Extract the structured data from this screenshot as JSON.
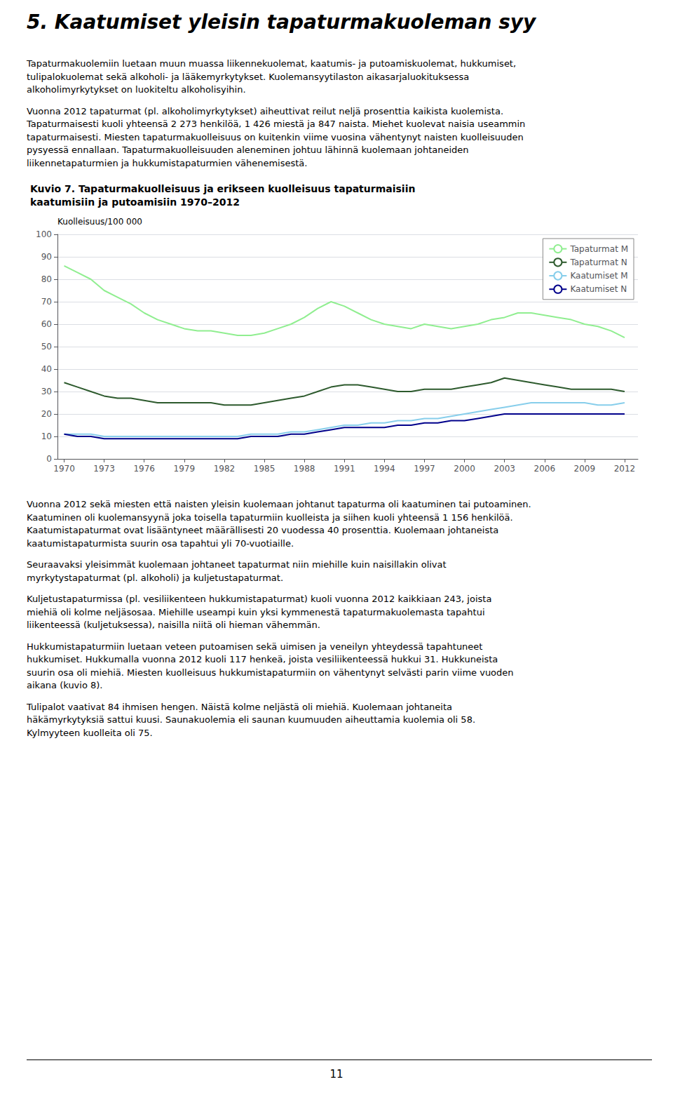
{
  "heading": "5. Kaatumiset yleisin tapaturmakuoleman syy",
  "text_before": [
    [
      "Tapaturmakuolemiin luetaan muun muassa liikennekuolemat, kaatumis- ja putoamiskuolemat, hukkumiset,",
      "tulipalokuolemat sekä alkoholi- ja lääkemyrkytykset. Kuolemansyytilaston aikasarjaluokituksessa",
      "alkoholimyrkytykset on luokiteltu alkoholisyihin."
    ],
    [
      "Vuonna 2012 tapaturmat (pl. alkoholimyrkytykset) aiheuttivat reilut neljä prosenttia kaikista kuolemista.",
      "Tapaturmaisesti kuoli yhteensä 2 273 henkilöä, 1 426 miestä ja 847 naista. Miehet kuolevat naisia useammin",
      "tapaturmaisesti. Miesten tapaturmakuolleisuus on kuitenkin viime vuosina vähentynyt naisten kuolleisuuden",
      "pysyessä ennallaan. Tapaturmakuolleisuuden aleneminen johtuu lähinnä kuolemaan johtaneiden",
      "liikennetapaturmien ja hukkumistapaturmien vähenemisestä."
    ]
  ],
  "chart_data": {
    "type": "line",
    "title": "Kuvio 7. Tapaturmakuolleisuus ja erikseen kuolleisuus tapaturmaisiin\nkaatumisiin ja putoamisiin 1970–2012",
    "ylabel": "Kuolleisuus/100 000",
    "x": [
      1970,
      1971,
      1972,
      1973,
      1974,
      1975,
      1976,
      1977,
      1978,
      1979,
      1980,
      1981,
      1982,
      1983,
      1984,
      1985,
      1986,
      1987,
      1988,
      1989,
      1990,
      1991,
      1992,
      1993,
      1994,
      1995,
      1996,
      1997,
      1998,
      1999,
      2000,
      2001,
      2002,
      2003,
      2004,
      2005,
      2006,
      2007,
      2008,
      2009,
      2010,
      2011,
      2012
    ],
    "xlim": [
      1969.5,
      2013
    ],
    "xticks": [
      1970,
      1973,
      1976,
      1979,
      1982,
      1985,
      1988,
      1991,
      1994,
      1997,
      2000,
      2003,
      2006,
      2009,
      2012
    ],
    "ylim": [
      0,
      100
    ],
    "yticks": [
      0,
      10,
      20,
      30,
      40,
      50,
      60,
      70,
      80,
      90,
      100
    ],
    "grid": true,
    "legend": "upper right",
    "series": [
      {
        "name": "Tapaturmat M",
        "color": "#90ee90",
        "values": [
          86,
          83,
          80,
          75,
          72,
          69,
          65,
          62,
          60,
          58,
          57,
          57,
          56,
          55,
          55,
          56,
          58,
          60,
          63,
          67,
          70,
          68,
          65,
          62,
          60,
          59,
          58,
          60,
          59,
          58,
          59,
          60,
          62,
          63,
          65,
          65,
          64,
          63,
          62,
          60,
          59,
          57,
          54
        ]
      },
      {
        "name": "Tapaturmat N",
        "color": "#2d5a2d",
        "values": [
          34,
          32,
          30,
          28,
          27,
          27,
          26,
          25,
          25,
          25,
          25,
          25,
          24,
          24,
          24,
          25,
          26,
          27,
          28,
          30,
          32,
          33,
          33,
          32,
          31,
          30,
          30,
          31,
          31,
          31,
          32,
          33,
          34,
          36,
          35,
          34,
          33,
          32,
          31,
          31,
          31,
          31,
          30
        ]
      },
      {
        "name": "Kaatumiset M",
        "color": "#87ceeb",
        "values": [
          11,
          11,
          11,
          10,
          10,
          10,
          10,
          10,
          10,
          10,
          10,
          10,
          10,
          10,
          11,
          11,
          11,
          12,
          12,
          13,
          14,
          15,
          15,
          16,
          16,
          17,
          17,
          18,
          18,
          19,
          20,
          21,
          22,
          23,
          24,
          25,
          25,
          25,
          25,
          25,
          24,
          24,
          25
        ]
      },
      {
        "name": "Kaatumiset N",
        "color": "#00008b",
        "values": [
          11,
          10,
          10,
          9,
          9,
          9,
          9,
          9,
          9,
          9,
          9,
          9,
          9,
          9,
          10,
          10,
          10,
          11,
          11,
          12,
          13,
          14,
          14,
          14,
          14,
          15,
          15,
          16,
          16,
          17,
          17,
          18,
          19,
          20,
          20,
          20,
          20,
          20,
          20,
          20,
          20,
          20,
          20
        ]
      }
    ]
  },
  "text_after": [
    [
      "Vuonna 2012 sekä miesten että naisten yleisin kuolemaan johtanut tapaturma oli kaatuminen tai putoaminen.",
      "Kaatuminen oli kuolemansyynä joka toisella tapaturmiin kuolleista ja siihen kuoli yhteensä 1 156 henkilöä.",
      "Kaatumistapaturmat ovat lisääntyneet määrällisesti 20 vuodessa 40 prosenttia. Kuolemaan johtaneista",
      "kaatumistapaturmista suurin osa tapahtui yli 70-vuotiaille."
    ],
    [
      "Seuraavaksi yleisimmät kuolemaan johtaneet tapaturmat niin miehille kuin naisillakin olivat",
      "myrkytystapaturmat (pl. alkoholi) ja kuljetustapaturmat."
    ],
    [
      "Kuljetustapaturmissa (pl. vesiliikenteen hukkumistapaturmat) kuoli vuonna 2012 kaikkiaan 243, joista",
      "miehiä oli kolme neljäsosaa. Miehille useampi kuin yksi kymmenestä tapaturmakuolemasta tapahtui",
      "liikenteessä (kuljetuksessa), naisilla niitä oli hieman vähemmän."
    ],
    [
      "Hukkumistapaturmiin luetaan veteen putoamisen sekä uimisen ja veneilyn yhteydessä tapahtuneet",
      "hukkumiset. Hukkumalla vuonna 2012 kuoli 117 henkeä, joista vesiliikenteessä hukkui 31. Hukkuneista",
      "suurin osa oli miehiä. Miesten kuolleisuus hukkumistapaturmiin on vähentynyt selvästi parin viime vuoden",
      "aikana (kuvio 8)."
    ],
    [
      "Tulipalot vaativat 84 ihmisen hengen. Näistä kolme neljästä oli miehiä. Kuolemaan johtaneita",
      "häkämyrkytyksiä sattui kuusi. Saunakuolemia eli saunan kuumuuden aiheuttamia kuolemia oli 58.",
      "Kylmyyteen kuolleita oli 75."
    ]
  ],
  "page_number": "11"
}
